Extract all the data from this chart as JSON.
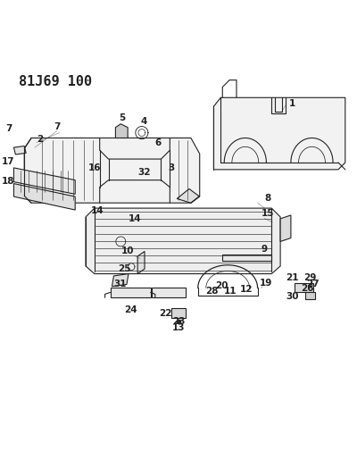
{
  "title": "81J69 100",
  "background_color": "#ffffff",
  "line_color": "#222222",
  "title_fontsize": 11,
  "label_fontsize": 7.5,
  "fig_width": 4.0,
  "fig_height": 5.33,
  "dpi": 100
}
